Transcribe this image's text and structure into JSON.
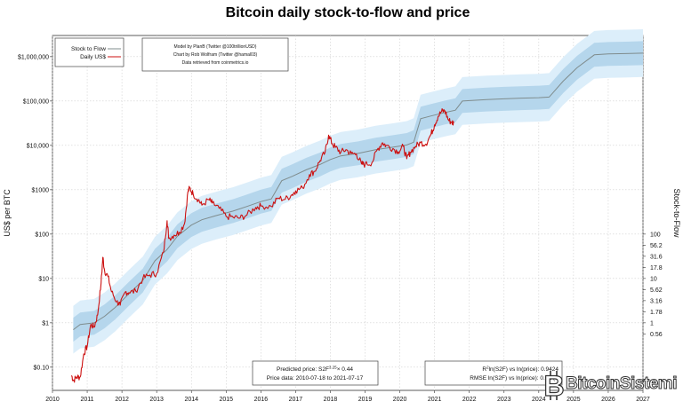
{
  "chart_data": {
    "type": "line",
    "title": "Bitcoin daily stock-to-flow and price",
    "ylabel_left": "US$ per BTC",
    "ylabel_right": "Stock-to-Flow",
    "x_ticks": [
      "2010",
      "2011",
      "2012",
      "2013",
      "2014",
      "2015",
      "2016",
      "2017",
      "2018",
      "2019",
      "2020",
      "2021",
      "2022",
      "2023",
      "2024",
      "2025",
      "2026",
      "2027"
    ],
    "x_range": [
      2010,
      2027
    ],
    "y_left_scale": "log",
    "y_left_range": [
      0.03,
      3000000
    ],
    "y_left_ticks": [
      {
        "value": 0.1,
        "label": "$0.10"
      },
      {
        "value": 1,
        "label": "$1"
      },
      {
        "value": 10,
        "label": "$10"
      },
      {
        "value": 100,
        "label": "$100"
      },
      {
        "value": 1000,
        "label": "$1000"
      },
      {
        "value": 10000,
        "label": "$10,000"
      },
      {
        "value": 100000,
        "label": "$100,000"
      },
      {
        "value": 1000000,
        "label": "$1,000,000"
      }
    ],
    "y_right_scale": "log",
    "y_right_ticks": [
      {
        "value": 0.56,
        "label": "0.56"
      },
      {
        "value": 1,
        "label": "1"
      },
      {
        "value": 1.78,
        "label": "1.78"
      },
      {
        "value": 3.16,
        "label": "3.16"
      },
      {
        "value": 5.62,
        "label": "5.62"
      },
      {
        "value": 10,
        "label": "10"
      },
      {
        "value": 17.8,
        "label": "17.8"
      },
      {
        "value": 31.6,
        "label": "31.6"
      },
      {
        "value": 56.2,
        "label": "56.2"
      },
      {
        "value": 100,
        "label": "100"
      }
    ],
    "grid": true,
    "legend": {
      "placement": "top-left",
      "entries": [
        {
          "label": "Stock to Flow",
          "color": "#7f8c8d"
        },
        {
          "label": "Daily US$",
          "color": "#cc1111"
        }
      ]
    },
    "credits": [
      "Model by PlanB (Twitter @100trillionUSD)",
      "Chart by Rob Wolfram (Twitter @hamal03)",
      "Data retrieved from coinmetrics.io"
    ],
    "note_left": {
      "line1_prefix": "Predicted price: S2F",
      "line1_exp": "3.25",
      "line1_suffix": "× 0.44",
      "line2": "Price data: 2010-07-18 to 2021-07-17"
    },
    "note_right": {
      "line1_prefix": "R",
      "line1_sup": "2",
      "line1_suffix": "ln(S2F) vs ln(price): 0.9424",
      "line2": "RMSE ln(S2F) vs ln(price): 0.62 (σ"
    },
    "series": [
      {
        "name": "Stock to Flow",
        "color": "#7f8c8d",
        "points": [
          [
            2010.6,
            0.7
          ],
          [
            2010.8,
            0.92
          ],
          [
            2011.2,
            1.0
          ],
          [
            2011.5,
            1.4
          ],
          [
            2011.8,
            2.2
          ],
          [
            2012.2,
            4.5
          ],
          [
            2012.6,
            9
          ],
          [
            2012.95,
            25
          ],
          [
            2013.3,
            45
          ],
          [
            2013.6,
            90
          ],
          [
            2014.0,
            160
          ],
          [
            2014.3,
            210
          ],
          [
            2014.7,
            260
          ],
          [
            2015.2,
            330
          ],
          [
            2015.6,
            420
          ],
          [
            2016.0,
            540
          ],
          [
            2016.3,
            620
          ],
          [
            2016.6,
            1600
          ],
          [
            2016.9,
            2000
          ],
          [
            2017.3,
            2800
          ],
          [
            2017.7,
            3700
          ],
          [
            2018.0,
            4800
          ],
          [
            2018.3,
            5800
          ],
          [
            2018.8,
            6600
          ],
          [
            2019.3,
            8000
          ],
          [
            2019.8,
            9100
          ],
          [
            2020.2,
            10200
          ],
          [
            2020.4,
            11800
          ],
          [
            2020.6,
            40000
          ],
          [
            2020.9,
            46000
          ],
          [
            2021.3,
            55000
          ],
          [
            2021.6,
            62000
          ],
          [
            2021.8,
            100000
          ],
          [
            2022.5,
            108000
          ],
          [
            2023.0,
            112000
          ],
          [
            2023.5,
            116000
          ],
          [
            2024.0,
            119000
          ],
          [
            2024.3,
            123000
          ],
          [
            2024.7,
            280000
          ],
          [
            2025.1,
            560000
          ],
          [
            2025.6,
            1100000
          ],
          [
            2026.0,
            1150000
          ],
          [
            2026.5,
            1170000
          ],
          [
            2027.0,
            1200000
          ]
        ],
        "band_inner_sigma_ln": 0.62,
        "band_outer_sigma_ln": 1.24
      },
      {
        "name": "Daily US$",
        "color": "#cc1111",
        "points": [
          [
            2010.55,
            0.065
          ],
          [
            2010.6,
            0.05
          ],
          [
            2010.7,
            0.06
          ],
          [
            2010.8,
            0.06
          ],
          [
            2010.9,
            0.2
          ],
          [
            2011.0,
            0.3
          ],
          [
            2011.1,
            0.9
          ],
          [
            2011.2,
            0.8
          ],
          [
            2011.3,
            1.5
          ],
          [
            2011.4,
            8
          ],
          [
            2011.45,
            30
          ],
          [
            2011.5,
            15
          ],
          [
            2011.6,
            11
          ],
          [
            2011.7,
            5
          ],
          [
            2011.85,
            3
          ],
          [
            2011.95,
            2.5
          ],
          [
            2012.1,
            5
          ],
          [
            2012.2,
            4.8
          ],
          [
            2012.4,
            5.2
          ],
          [
            2012.6,
            10
          ],
          [
            2012.8,
            12
          ],
          [
            2013.0,
            13
          ],
          [
            2013.2,
            40
          ],
          [
            2013.3,
            200
          ],
          [
            2013.35,
            80
          ],
          [
            2013.5,
            95
          ],
          [
            2013.65,
            110
          ],
          [
            2013.8,
            170
          ],
          [
            2013.9,
            900
          ],
          [
            2013.95,
            1100
          ],
          [
            2014.05,
            800
          ],
          [
            2014.2,
            600
          ],
          [
            2014.3,
            450
          ],
          [
            2014.5,
            600
          ],
          [
            2014.6,
            500
          ],
          [
            2014.8,
            380
          ],
          [
            2015.0,
            250
          ],
          [
            2015.2,
            240
          ],
          [
            2015.4,
            230
          ],
          [
            2015.6,
            270
          ],
          [
            2015.85,
            400
          ],
          [
            2016.0,
            430
          ],
          [
            2016.3,
            420
          ],
          [
            2016.5,
            650
          ],
          [
            2016.7,
            610
          ],
          [
            2016.9,
            780
          ],
          [
            2017.0,
            950
          ],
          [
            2017.2,
            1100
          ],
          [
            2017.4,
            2200
          ],
          [
            2017.55,
            2600
          ],
          [
            2017.7,
            4500
          ],
          [
            2017.85,
            7000
          ],
          [
            2017.95,
            17000
          ],
          [
            2018.05,
            11000
          ],
          [
            2018.15,
            9000
          ],
          [
            2018.3,
            7000
          ],
          [
            2018.45,
            8000
          ],
          [
            2018.6,
            6500
          ],
          [
            2018.75,
            6400
          ],
          [
            2018.9,
            3800
          ],
          [
            2019.0,
            3700
          ],
          [
            2019.2,
            4100
          ],
          [
            2019.35,
            8000
          ],
          [
            2019.5,
            11500
          ],
          [
            2019.6,
            10000
          ],
          [
            2019.8,
            8500
          ],
          [
            2019.95,
            7200
          ],
          [
            2020.1,
            9500
          ],
          [
            2020.2,
            5000
          ],
          [
            2020.3,
            7000
          ],
          [
            2020.45,
            9500
          ],
          [
            2020.6,
            11500
          ],
          [
            2020.75,
            10700
          ],
          [
            2020.9,
            18000
          ],
          [
            2021.0,
            29000
          ],
          [
            2021.1,
            45000
          ],
          [
            2021.2,
            58000
          ],
          [
            2021.3,
            60000
          ],
          [
            2021.4,
            37000
          ],
          [
            2021.5,
            33000
          ],
          [
            2021.55,
            31500
          ]
        ]
      }
    ]
  }
}
